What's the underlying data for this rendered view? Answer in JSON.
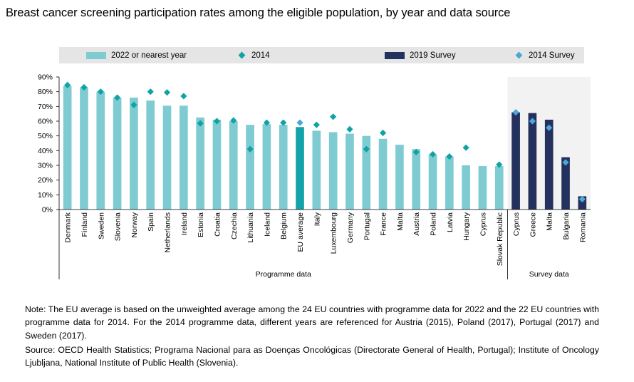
{
  "title": "Breast cancer screening participation rates among the eligible population, by year and data source",
  "legend": {
    "items": [
      {
        "label": "2022 or nearest year",
        "kind": "bar",
        "color": "#7fcbd2"
      },
      {
        "label": "2014",
        "kind": "diamond",
        "color": "#0fa3a6"
      },
      {
        "label": "2019 Survey",
        "kind": "bar",
        "color": "#24305e"
      },
      {
        "label": "2014 Survey",
        "kind": "diamond",
        "color": "#4aa7d8"
      }
    ]
  },
  "chart_data": {
    "type": "bar",
    "title": "Breast cancer screening participation rates among the eligible population, by year and data source",
    "ylabel": "",
    "xlabel": "",
    "ylim": [
      0,
      90
    ],
    "y_ticks": [
      "0%",
      "10%",
      "20%",
      "30%",
      "40%",
      "50%",
      "60%",
      "70%",
      "80%",
      "90%"
    ],
    "y_tick_values": [
      0,
      10,
      20,
      30,
      40,
      50,
      60,
      70,
      80,
      90
    ],
    "grid": false,
    "legend_position": "top",
    "groups": [
      {
        "label": "Programme data",
        "from": 0,
        "to": 26
      },
      {
        "label": "Survey data",
        "from": 27,
        "to": 31
      }
    ],
    "categories": [
      "Denmark",
      "Finland",
      "Sweden",
      "Slovenia",
      "Norway",
      "Spain",
      "Netherlands",
      "Ireland",
      "Estonia",
      "Croatia",
      "Czechia",
      "Lithuania",
      "Iceland",
      "Belgium",
      "EU average",
      "Italy",
      "Luxembourg",
      "Germany",
      "Portugal",
      "France",
      "Malta",
      "Austria",
      "Poland",
      "Latvia",
      "Hungary",
      "Cyprus",
      "Slovak Republic",
      "Cyprus",
      "Greece",
      "Malta",
      "Bulgaria",
      "Romania"
    ],
    "series": [
      {
        "name": "2022 or nearest year",
        "type": "bar",
        "color": "#7fcbd2",
        "highlight_color": "#13a3a8",
        "values": [
          84,
          83,
          80,
          76,
          76,
          74,
          70.5,
          70.5,
          62.5,
          61,
          60,
          57.5,
          58,
          57.5,
          56,
          53.5,
          52.5,
          51.5,
          50,
          48,
          44,
          41,
          37.5,
          36,
          30,
          29.5,
          29.5,
          null,
          null,
          null,
          null,
          null
        ]
      },
      {
        "name": "2014",
        "type": "diamond",
        "color": "#0fa3a6",
        "values": [
          84.5,
          83,
          80,
          76,
          71,
          80,
          79.5,
          77,
          58.5,
          60,
          60.5,
          41,
          59,
          59,
          null,
          57.5,
          63,
          54.5,
          41,
          52,
          null,
          39,
          37.5,
          36,
          42,
          null,
          30.5,
          null,
          null,
          null,
          null,
          null
        ]
      },
      {
        "name": "2019 Survey",
        "type": "bar",
        "color": "#24305e",
        "values": [
          null,
          null,
          null,
          null,
          null,
          null,
          null,
          null,
          null,
          null,
          null,
          null,
          null,
          null,
          null,
          null,
          null,
          null,
          null,
          null,
          null,
          null,
          null,
          null,
          null,
          null,
          null,
          66,
          65.5,
          61,
          35.5,
          9
        ]
      },
      {
        "name": "2014 Survey",
        "type": "diamond",
        "color": "#4aa7d8",
        "values": [
          null,
          null,
          null,
          null,
          null,
          null,
          null,
          null,
          null,
          null,
          null,
          null,
          null,
          null,
          59,
          null,
          null,
          null,
          null,
          null,
          null,
          null,
          null,
          null,
          null,
          null,
          null,
          66,
          60,
          55.5,
          32,
          7
        ]
      }
    ]
  },
  "notes": {
    "note": "Note: The EU average is based on the unweighted average among the 24 EU countries with programme data for 2022 and the 22 EU countries with programme data for 2014. For the 2014 programme data, different years are referenced for Austria (2015), Poland (2017), Portugal (2017) and Sweden (2017).",
    "source": "Source: OECD Health Statistics; Programa Nacional para as Doenças Oncológicas (Directorate General of Health, Portugal); Institute of Oncology Ljubljana, National Institute of Public Health (Slovenia)."
  }
}
